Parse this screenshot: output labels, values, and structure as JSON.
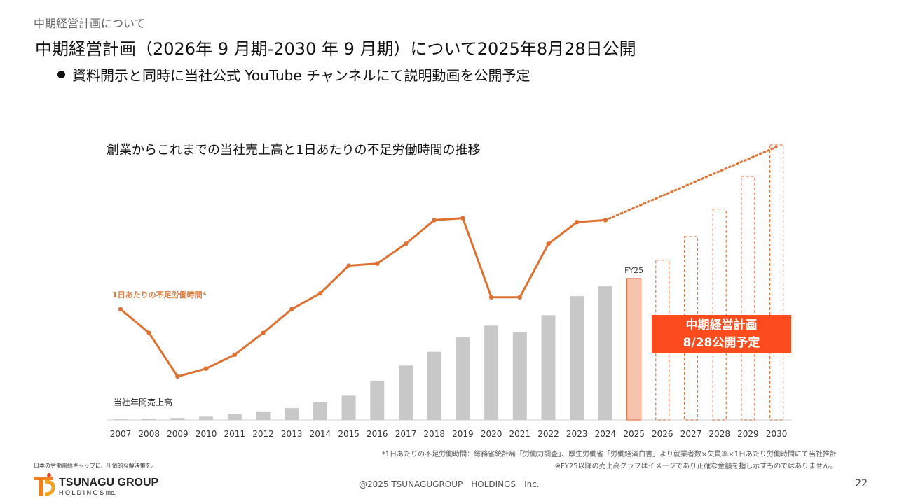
{
  "header": {
    "section": "中期経営計画について",
    "title": "中期経営計画（2026年 9 月期-2030 年 9 月期）について2025年8月28日公開",
    "bullet": "資料開示と同時に当社公式 YouTube チャンネルにて説明動画を公開予定"
  },
  "chart_data": {
    "type": "bar",
    "title": "創業からこれまでの当社売上高と1日あたりの不足労働時間の推移",
    "categories": [
      "2007",
      "2008",
      "2009",
      "2010",
      "2011",
      "2012",
      "2013",
      "2014",
      "2015",
      "2016",
      "2017",
      "2018",
      "2019",
      "2020",
      "2021",
      "2022",
      "2023",
      "2024",
      "2025",
      "2026",
      "2027",
      "2028",
      "2029",
      "2030"
    ],
    "series": [
      {
        "name": "当社年間売上高",
        "kind": "bar",
        "values": [
          0.5,
          1,
          1.5,
          2.5,
          4.5,
          6.5,
          9,
          13.5,
          18.5,
          30,
          41.5,
          52,
          63,
          72,
          67,
          80,
          94.5,
          102,
          108,
          122,
          140,
          161,
          186,
          210
        ],
        "styles": [
          "actual",
          "actual",
          "actual",
          "actual",
          "actual",
          "actual",
          "actual",
          "actual",
          "actual",
          "actual",
          "actual",
          "actual",
          "actual",
          "actual",
          "actual",
          "actual",
          "actual",
          "actual",
          "forecast-current",
          "plan",
          "plan",
          "plan",
          "plan",
          "plan"
        ]
      },
      {
        "name": "1日あたりの不足労働時間*",
        "kind": "line",
        "values": [
          48,
          36,
          14,
          18,
          25,
          36,
          48,
          56,
          70,
          71,
          81,
          93,
          94,
          54,
          54,
          81,
          92,
          93,
          null,
          null,
          null,
          null,
          null,
          130
        ],
        "projected_from": "2024",
        "projected_to": "2030"
      }
    ],
    "annotations": [
      "FY25"
    ],
    "grid": false,
    "colors": {
      "bar_actual": "#c8c8c8",
      "bar_current": "#f6c4ad",
      "bar_plan_outline": "#e8784a",
      "line": "#e07030",
      "plan_box": "#fc4c1d"
    }
  },
  "plan_box": {
    "line1": "中期経営計画",
    "line2": "8/28公開予定"
  },
  "footnotes": {
    "note1": "*1日あたりの不足労働時間：総務省統計局「労働力調査」、厚生労働省「労働経済白書」より就業者数×欠員率×1日あたり労働時間にて当社推計",
    "note2": "※FY25以降の売上高グラフはイメージであり正確な金額を指し示すものではありません。"
  },
  "footer": {
    "tagline": "日本の労働需給ギャップに、圧倒的な解決策を。",
    "logo_main": "TSUNAGU GROUP",
    "logo_sub": "H O L D I N G S  Inc.",
    "copyright": "@2025 TSUNAGUGROUP　HOLDINGS　Inc.",
    "page": "22"
  }
}
